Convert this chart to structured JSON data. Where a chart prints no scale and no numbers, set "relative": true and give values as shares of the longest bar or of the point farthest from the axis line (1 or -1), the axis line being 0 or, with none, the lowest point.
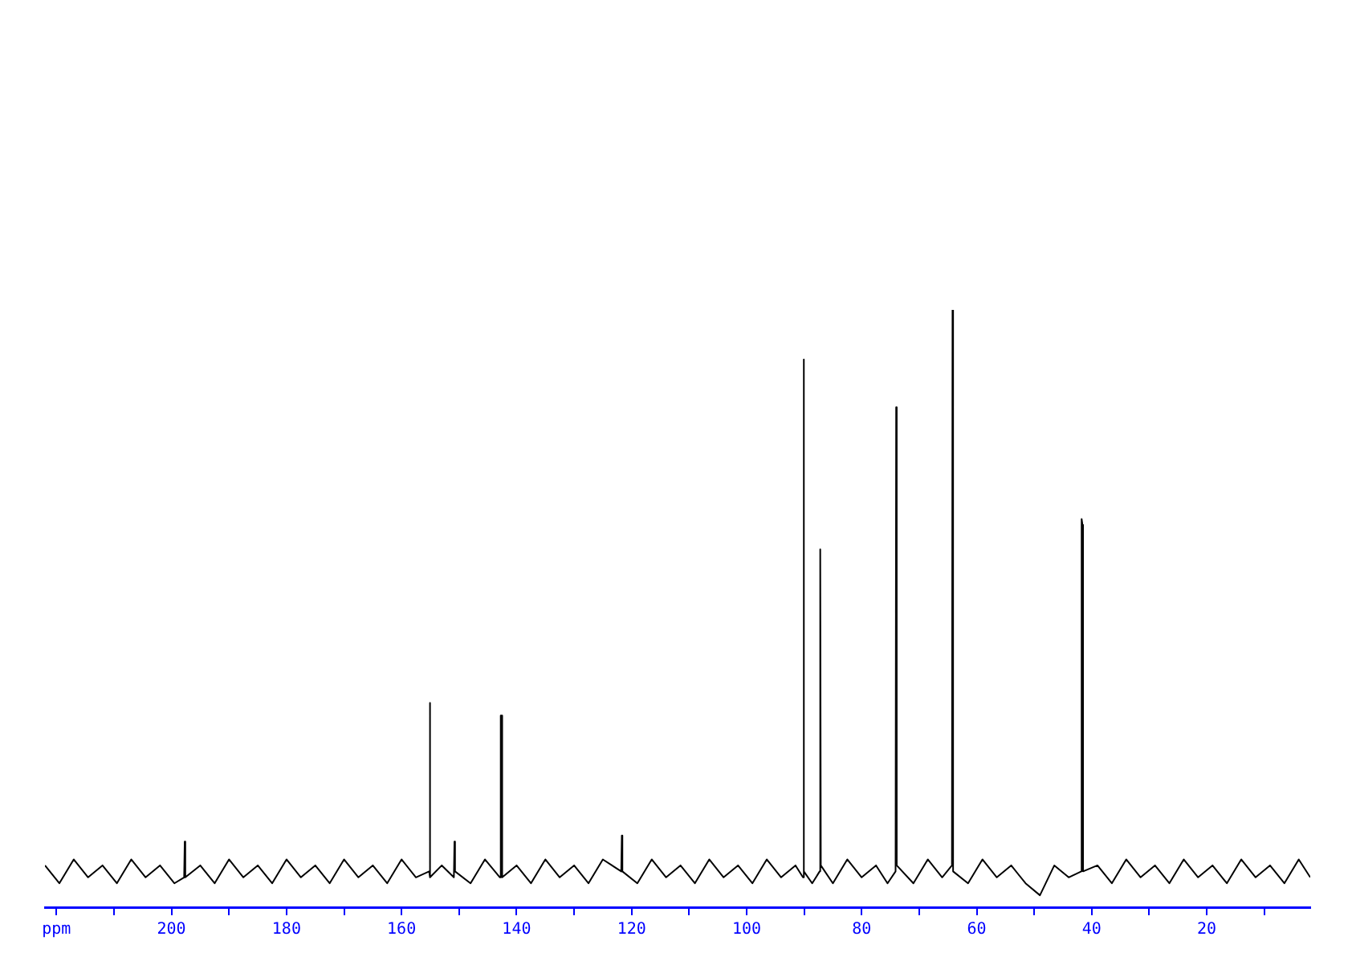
{
  "chart_data": {
    "type": "line",
    "relative": true,
    "grid": false,
    "marker": "none",
    "tick_labels": "x",
    "xlim": [
      222,
      2
    ],
    "xticks": [
      {
        "value": 220,
        "label": "ppm"
      },
      {
        "value": 210,
        "label": null
      },
      200,
      {
        "value": 190,
        "label": null
      },
      180,
      {
        "value": 170,
        "label": null
      },
      160,
      {
        "value": 150,
        "label": null
      },
      140,
      {
        "value": 130,
        "label": null
      },
      120,
      {
        "value": 110,
        "label": null
      },
      100,
      {
        "value": 90,
        "label": null
      },
      80,
      {
        "value": 70,
        "label": null
      },
      60,
      {
        "value": 50,
        "label": null
      },
      40,
      {
        "value": 30,
        "label": null
      },
      20,
      {
        "value": 10,
        "label": null
      }
    ],
    "series": [
      {
        "color": "#000000",
        "x": [
          222,
          219.5,
          217,
          214.5,
          212,
          209.5,
          207,
          204.5,
          202,
          199.5,
          197.8,
          197.7,
          197.6,
          195,
          192.5,
          190,
          187.5,
          185,
          182.5,
          180,
          177.5,
          175,
          172.5,
          170,
          167.5,
          165,
          162.5,
          160,
          157.5,
          155.2,
          155.1,
          155.0,
          153,
          150.9,
          150.8,
          150.7,
          148,
          145.5,
          142.9,
          142.75,
          142.6,
          142.5,
          140,
          137.5,
          135,
          132.5,
          130,
          127.5,
          125,
          121.8,
          121.7,
          121.6,
          119,
          116.5,
          114,
          111.5,
          109,
          106.5,
          104,
          101.5,
          99,
          96.5,
          94,
          91.5,
          90.2,
          90.1,
          90.0,
          88.6,
          87.3,
          87.2,
          87.1,
          85,
          82.5,
          80,
          77.5,
          75.5,
          74.1,
          74.0,
          73.9,
          71,
          68.5,
          66,
          64.3,
          64.2,
          64.1,
          61.5,
          59,
          56.5,
          54,
          51.5,
          49,
          46.5,
          44,
          41.8,
          41.75,
          41.6,
          41.5,
          39,
          36.5,
          34,
          31.5,
          29,
          26.5,
          24,
          21.5,
          19,
          16.5,
          14,
          11.5,
          9,
          6.5,
          4,
          2
        ],
        "values": [
          0.07,
          0.04,
          0.08,
          0.05,
          0.07,
          0.04,
          0.08,
          0.05,
          0.07,
          0.04,
          0.05,
          0.11,
          0.05,
          0.07,
          0.04,
          0.08,
          0.05,
          0.07,
          0.04,
          0.08,
          0.05,
          0.07,
          0.04,
          0.08,
          0.05,
          0.07,
          0.04,
          0.08,
          0.05,
          0.06,
          0.342,
          0.05,
          0.07,
          0.05,
          0.11,
          0.06,
          0.04,
          0.08,
          0.05,
          0.321,
          0.321,
          0.05,
          0.07,
          0.04,
          0.08,
          0.05,
          0.07,
          0.04,
          0.08,
          0.06,
          0.12,
          0.06,
          0.04,
          0.08,
          0.05,
          0.07,
          0.04,
          0.08,
          0.05,
          0.07,
          0.04,
          0.08,
          0.05,
          0.07,
          0.05,
          0.917,
          0.06,
          0.04,
          0.06,
          0.599,
          0.07,
          0.04,
          0.08,
          0.05,
          0.07,
          0.04,
          0.06,
          0.837,
          0.07,
          0.04,
          0.08,
          0.05,
          0.07,
          1,
          0.06,
          0.04,
          0.08,
          0.05,
          0.07,
          0.04,
          0.02,
          0.07,
          0.05,
          0.06,
          0.65,
          0.64,
          0.06,
          0.07,
          0.04,
          0.08,
          0.05,
          0.07,
          0.04,
          0.08,
          0.05,
          0.07,
          0.04,
          0.08,
          0.05,
          0.07,
          0.04,
          0.08,
          0.05
        ]
      }
    ]
  }
}
